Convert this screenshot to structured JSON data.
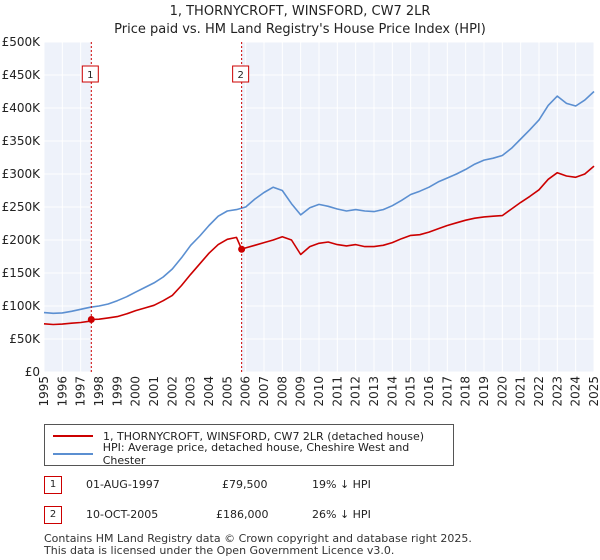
{
  "title_line1": "1, THORNYCROFT, WINSFORD, CW7 2LR",
  "title_line2": "Price paid vs. HM Land Registry's House Price Index (HPI)",
  "chart_data": {
    "type": "line",
    "xlim": [
      1995,
      2025
    ],
    "ylim": [
      0,
      500000
    ],
    "y_ticks": [
      0,
      50000,
      100000,
      150000,
      200000,
      250000,
      300000,
      350000,
      400000,
      450000,
      500000
    ],
    "y_tick_labels": [
      "£0",
      "£50K",
      "£100K",
      "£150K",
      "£200K",
      "£250K",
      "£300K",
      "£350K",
      "£400K",
      "£450K",
      "£500K"
    ],
    "x_ticks": [
      1995,
      1996,
      1997,
      1998,
      1999,
      2000,
      2001,
      2002,
      2003,
      2004,
      2005,
      2006,
      2007,
      2008,
      2009,
      2010,
      2011,
      2012,
      2013,
      2014,
      2015,
      2016,
      2017,
      2018,
      2019,
      2020,
      2021,
      2022,
      2023,
      2024,
      2025
    ],
    "x_tick_labels": [
      "1995",
      "1996",
      "1997",
      "1998",
      "1999",
      "2000",
      "2001",
      "2002",
      "2003",
      "2004",
      "2005",
      "2006",
      "2007",
      "2008",
      "2009",
      "2010",
      "2011",
      "2012",
      "2013",
      "2014",
      "2015",
      "2016",
      "2017",
      "2018",
      "2019",
      "2020",
      "2021",
      "2022",
      "2023",
      "2024",
      "2025"
    ],
    "grid": true,
    "shaded_period": [
      1997.58,
      2005.78
    ],
    "series": [
      {
        "name": "1, THORNYCROFT, WINSFORD, CW7 2LR (detached house)",
        "color": "#cc0000",
        "x": [
          1995,
          1995.5,
          1996,
          1996.5,
          1997,
          1997.5,
          1997.58,
          1998,
          1998.5,
          1999,
          1999.5,
          2000,
          2000.5,
          2001,
          2001.5,
          2002,
          2002.5,
          2003,
          2003.5,
          2004,
          2004.5,
          2005,
          2005.5,
          2005.78,
          2006,
          2006.5,
          2007,
          2007.5,
          2008,
          2008.5,
          2009,
          2009.5,
          2010,
          2010.5,
          2011,
          2011.5,
          2012,
          2012.5,
          2013,
          2013.5,
          2014,
          2014.5,
          2015,
          2015.5,
          2016,
          2016.5,
          2017,
          2017.5,
          2018,
          2018.5,
          2019,
          2019.5,
          2020,
          2020.5,
          2021,
          2021.5,
          2022,
          2022.5,
          2023,
          2023.5,
          2024,
          2024.5,
          2025
        ],
        "y": [
          73000,
          72000,
          72500,
          74000,
          75000,
          77000,
          79500,
          80000,
          82000,
          84000,
          88000,
          93000,
          97000,
          101000,
          108000,
          116000,
          131000,
          148000,
          164000,
          180000,
          193000,
          201000,
          204000,
          186000,
          188000,
          192000,
          196000,
          200000,
          205000,
          200000,
          178000,
          190000,
          195000,
          197000,
          193000,
          191000,
          193000,
          190000,
          190000,
          192000,
          196000,
          202000,
          207000,
          208000,
          212000,
          217000,
          222000,
          226000,
          230000,
          233000,
          235000,
          236000,
          237000,
          247000,
          257000,
          266000,
          276000,
          292000,
          302000,
          297000,
          295000,
          300000,
          312000
        ]
      },
      {
        "name": "HPI: Average price, detached house, Cheshire West and Chester",
        "color": "#5b8fd1",
        "x": [
          1995,
          1995.5,
          1996,
          1996.5,
          1997,
          1997.5,
          1998,
          1998.5,
          1999,
          1999.5,
          2000,
          2000.5,
          2001,
          2001.5,
          2002,
          2002.5,
          2003,
          2003.5,
          2004,
          2004.5,
          2005,
          2005.5,
          2006,
          2006.5,
          2007,
          2007.5,
          2008,
          2008.5,
          2009,
          2009.5,
          2010,
          2010.5,
          2011,
          2011.5,
          2012,
          2012.5,
          2013,
          2013.5,
          2014,
          2014.5,
          2015,
          2015.5,
          2016,
          2016.5,
          2017,
          2017.5,
          2018,
          2018.5,
          2019,
          2019.5,
          2020,
          2020.5,
          2021,
          2021.5,
          2022,
          2022.5,
          2023,
          2023.5,
          2024,
          2024.5,
          2025
        ],
        "y": [
          90000,
          89000,
          89500,
          92000,
          95000,
          98000,
          100000,
          103000,
          108000,
          114000,
          121000,
          128000,
          135000,
          144000,
          156000,
          173000,
          192000,
          206000,
          222000,
          236000,
          244000,
          246000,
          250000,
          262000,
          272000,
          280000,
          275000,
          255000,
          238000,
          249000,
          254000,
          251000,
          247000,
          244000,
          246000,
          244000,
          243000,
          246000,
          252000,
          260000,
          269000,
          274000,
          280000,
          288000,
          294000,
          300000,
          307000,
          315000,
          321000,
          324000,
          328000,
          339000,
          353000,
          367000,
          382000,
          404000,
          418000,
          407000,
          403000,
          412000,
          425000
        ]
      }
    ],
    "sales": [
      {
        "label": "1",
        "x": 1997.58,
        "price": 79500
      },
      {
        "label": "2",
        "x": 2005.78,
        "price": 186000
      }
    ]
  },
  "legend": {
    "items": [
      {
        "label": "1, THORNYCROFT, WINSFORD, CW7 2LR (detached house)",
        "color": "#cc0000"
      },
      {
        "label": "HPI: Average price, detached house, Cheshire West and Chester",
        "color": "#5b8fd1"
      }
    ]
  },
  "sales_table": [
    {
      "num": "1",
      "date": "01-AUG-1997",
      "price": "£79,500",
      "hpi": "19% ↓ HPI"
    },
    {
      "num": "2",
      "date": "10-OCT-2005",
      "price": "£186,000",
      "hpi": "26% ↓ HPI"
    }
  ],
  "footer": {
    "line1": "Contains HM Land Registry data © Crown copyright and database right 2025.",
    "line2": "This data is licensed under the Open Government Licence v3.0."
  }
}
